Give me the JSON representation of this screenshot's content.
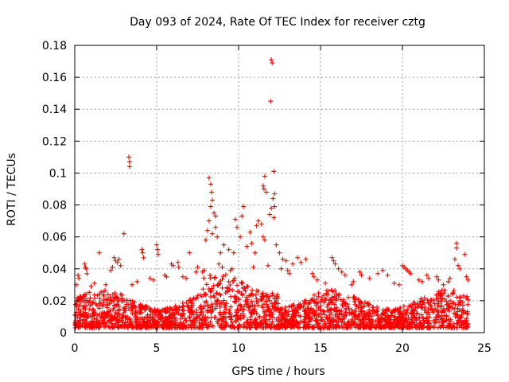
{
  "chart_data": {
    "type": "scatter",
    "title": "Day 093 of 2024, Rate Of TEC Index for receiver cztg",
    "xlabel": "GPS time / hours",
    "ylabel": "ROTI / TECUs",
    "xlim": [
      0,
      25
    ],
    "ylim": [
      0,
      0.18
    ],
    "xticks": [
      0,
      5,
      10,
      15,
      20,
      25
    ],
    "yticks": [
      0,
      0.02,
      0.04,
      0.06,
      0.08,
      0.1,
      0.12,
      0.14,
      0.16,
      0.18
    ],
    "xtick_labels": [
      "0",
      "5",
      "10",
      "15",
      "20",
      "25"
    ],
    "ytick_labels": [
      "0",
      "0.02",
      "0.04",
      "0.06",
      "0.08",
      "0.1",
      "0.12",
      "0.14",
      "0.16",
      "0.18"
    ],
    "grid": true,
    "marker": "+",
    "color": "#ff0000",
    "data_range": {
      "x": [
        0,
        24
      ],
      "y_min": 0.003
    },
    "series": [
      {
        "name": "ROTI",
        "points": [
          [
            12.0,
            0.171
          ],
          [
            12.05,
            0.169
          ],
          [
            11.95,
            0.145
          ],
          [
            3.3,
            0.11
          ],
          [
            3.35,
            0.107
          ],
          [
            3.35,
            0.104
          ],
          [
            3.0,
            0.062
          ],
          [
            12.15,
            0.101
          ],
          [
            11.6,
            0.098
          ],
          [
            8.2,
            0.097
          ],
          [
            8.3,
            0.093
          ],
          [
            8.35,
            0.088
          ],
          [
            11.5,
            0.092
          ],
          [
            11.55,
            0.09
          ],
          [
            11.7,
            0.088
          ],
          [
            12.2,
            0.087
          ],
          [
            12.1,
            0.084
          ],
          [
            8.4,
            0.083
          ],
          [
            8.3,
            0.079
          ],
          [
            8.5,
            0.075
          ],
          [
            8.6,
            0.073
          ],
          [
            8.2,
            0.07
          ],
          [
            10.3,
            0.079
          ],
          [
            10.2,
            0.073
          ],
          [
            9.9,
            0.066
          ],
          [
            9.8,
            0.071
          ],
          [
            12.2,
            0.079
          ],
          [
            12.0,
            0.078
          ],
          [
            11.9,
            0.074
          ],
          [
            12.15,
            0.072
          ],
          [
            11.2,
            0.07
          ],
          [
            11.1,
            0.067
          ],
          [
            11.4,
            0.068
          ],
          [
            8.6,
            0.066
          ],
          [
            8.1,
            0.064
          ],
          [
            8.4,
            0.062
          ],
          [
            8.7,
            0.06
          ],
          [
            10.7,
            0.063
          ],
          [
            11.5,
            0.06
          ],
          [
            11.6,
            0.058
          ],
          [
            12.3,
            0.055
          ],
          [
            10.1,
            0.06
          ],
          [
            10.8,
            0.056
          ],
          [
            9.1,
            0.055
          ],
          [
            9.4,
            0.052
          ],
          [
            9.7,
            0.05
          ],
          [
            8.0,
            0.058
          ],
          [
            8.9,
            0.05
          ],
          [
            10.5,
            0.054
          ],
          [
            11.0,
            0.05
          ],
          [
            12.5,
            0.05
          ],
          [
            12.7,
            0.046
          ],
          [
            12.9,
            0.045
          ],
          [
            13.3,
            0.043
          ],
          [
            14.1,
            0.046
          ],
          [
            13.6,
            0.047
          ],
          [
            13.8,
            0.044
          ],
          [
            15.7,
            0.047
          ],
          [
            15.8,
            0.045
          ],
          [
            15.9,
            0.043
          ],
          [
            23.3,
            0.056
          ],
          [
            23.3,
            0.053
          ],
          [
            23.8,
            0.049
          ],
          [
            23.2,
            0.046
          ],
          [
            23.4,
            0.042
          ],
          [
            23.5,
            0.04
          ],
          [
            1.5,
            0.05
          ],
          [
            2.4,
            0.047
          ],
          [
            2.5,
            0.045
          ],
          [
            2.6,
            0.044
          ],
          [
            2.7,
            0.046
          ],
          [
            2.3,
            0.041
          ],
          [
            2.2,
            0.039
          ],
          [
            2.8,
            0.042
          ],
          [
            0.6,
            0.043
          ],
          [
            0.65,
            0.041
          ],
          [
            0.7,
            0.04
          ],
          [
            0.75,
            0.037
          ],
          [
            0.2,
            0.036
          ],
          [
            0.25,
            0.034
          ],
          [
            4.1,
            0.052
          ],
          [
            4.15,
            0.05
          ],
          [
            4.2,
            0.047
          ],
          [
            5.0,
            0.055
          ],
          [
            5.05,
            0.052
          ],
          [
            5.1,
            0.049
          ],
          [
            5.9,
            0.043
          ],
          [
            6.0,
            0.042
          ],
          [
            6.3,
            0.044
          ],
          [
            6.35,
            0.041
          ],
          [
            7.0,
            0.05
          ],
          [
            7.5,
            0.041
          ],
          [
            7.4,
            0.038
          ],
          [
            16.1,
            0.04
          ],
          [
            16.3,
            0.038
          ],
          [
            16.5,
            0.036
          ],
          [
            17.4,
            0.038
          ],
          [
            17.5,
            0.036
          ],
          [
            18.0,
            0.034
          ],
          [
            18.5,
            0.037
          ],
          [
            18.8,
            0.039
          ],
          [
            19.1,
            0.036
          ],
          [
            20.0,
            0.042
          ],
          [
            20.1,
            0.041
          ],
          [
            20.2,
            0.04
          ],
          [
            20.3,
            0.039
          ],
          [
            20.4,
            0.038
          ],
          [
            20.5,
            0.037
          ],
          [
            21.0,
            0.033
          ],
          [
            21.2,
            0.032
          ],
          [
            21.5,
            0.036
          ],
          [
            21.6,
            0.034
          ],
          [
            22.1,
            0.035
          ],
          [
            22.2,
            0.033
          ],
          [
            22.8,
            0.032
          ],
          [
            22.9,
            0.034
          ],
          [
            23.9,
            0.035
          ],
          [
            24.0,
            0.033
          ],
          [
            14.5,
            0.037
          ],
          [
            14.6,
            0.035
          ],
          [
            14.8,
            0.033
          ],
          [
            13.0,
            0.039
          ],
          [
            13.1,
            0.037
          ],
          [
            12.6,
            0.04
          ],
          [
            11.8,
            0.042
          ],
          [
            10.9,
            0.041
          ],
          [
            9.5,
            0.039
          ],
          [
            9.6,
            0.04
          ],
          [
            9.0,
            0.041
          ],
          [
            8.8,
            0.043
          ],
          [
            7.8,
            0.038
          ],
          [
            7.9,
            0.039
          ],
          [
            6.6,
            0.035
          ],
          [
            6.8,
            0.034
          ],
          [
            5.5,
            0.036
          ],
          [
            5.6,
            0.035
          ],
          [
            4.6,
            0.034
          ],
          [
            4.8,
            0.033
          ],
          [
            3.8,
            0.032
          ],
          [
            3.5,
            0.03
          ],
          [
            1.9,
            0.03
          ],
          [
            1.2,
            0.031
          ],
          [
            1.0,
            0.029
          ],
          [
            0.1,
            0.03
          ],
          [
            17.0,
            0.032
          ],
          [
            19.5,
            0.031
          ],
          [
            19.8,
            0.03
          ],
          [
            22.5,
            0.03
          ],
          [
            15.3,
            0.031
          ],
          [
            16.9,
            0.03
          ]
        ],
        "note": "plus a dense band of points between 0.003 and ~0.03 across 0-24 h"
      }
    ]
  }
}
